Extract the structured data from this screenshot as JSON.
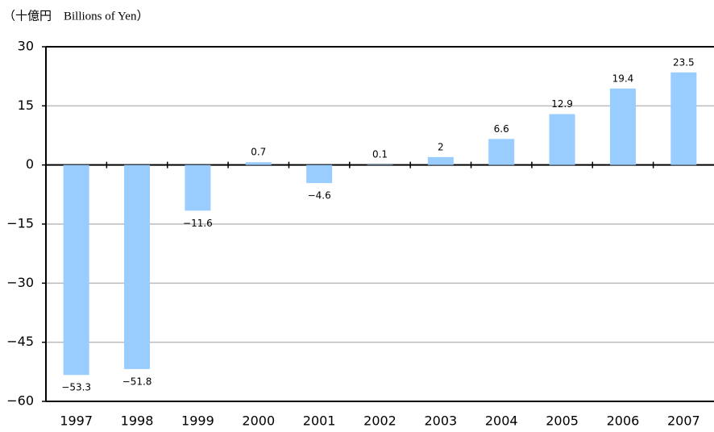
{
  "chart_data": {
    "type": "bar",
    "unit_label": "（十億円　Billions of Yen）",
    "categories": [
      "1997",
      "1998",
      "1999",
      "2000",
      "2001",
      "2002",
      "2003",
      "2004",
      "2005",
      "2006",
      "2007"
    ],
    "values": [
      -53.3,
      -51.8,
      -11.6,
      0.7,
      -4.6,
      0.1,
      2,
      6.6,
      12.9,
      19.4,
      23.5
    ],
    "value_labels": [
      "−53.3",
      "−51.8",
      "−11.6",
      "0.7",
      "−4.6",
      "0.1",
      "2",
      "6.6",
      "12.9",
      "19.4",
      "23.5"
    ],
    "color": "#99ccff",
    "ylim": [
      -60,
      30
    ],
    "yticks": [
      {
        "value": -60,
        "label": "−60"
      },
      {
        "value": -45,
        "label": "−45"
      },
      {
        "value": -30,
        "label": "−30"
      },
      {
        "value": -15,
        "label": "−15"
      },
      0,
      15,
      30
    ],
    "grid": true
  }
}
